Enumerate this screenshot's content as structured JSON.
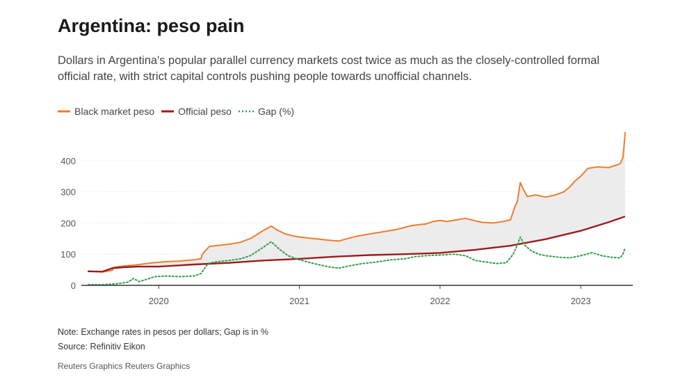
{
  "header": {
    "title": "Argentina: peso pain",
    "subtitle": "Dollars in Argentina's popular parallel currency markets cost twice as much as the closely-controlled formal official rate, with strict capital controls pushing people towards unofficial channels."
  },
  "footer": {
    "note": "Note: Exchange rates in pesos per dollars; Gap is in %",
    "source": "Source: Refinitiv Eikon",
    "credit": "Reuters Graphics Reuters Graphics"
  },
  "colors": {
    "black_market": "#f07c2e",
    "official": "#9b1c1c",
    "gap": "#2e9e4a",
    "fill": "#ececec",
    "axis": "#333333",
    "grid": "#dddddd"
  },
  "chart_data": {
    "type": "line",
    "title": "Argentina: peso pain",
    "xlabel": "",
    "ylabel": "",
    "xlim": [
      2019.45,
      2023.37
    ],
    "ylim": [
      0,
      500
    ],
    "yticks": [
      0,
      100,
      200,
      300,
      400
    ],
    "xticks": [
      2020,
      2021,
      2022,
      2023
    ],
    "legend_position": "top-left",
    "grid": true,
    "series": [
      {
        "name": "Black market peso",
        "style": "solid",
        "points": [
          [
            2019.5,
            45
          ],
          [
            2019.6,
            43
          ],
          [
            2019.67,
            48
          ],
          [
            2019.68,
            58
          ],
          [
            2019.75,
            62
          ],
          [
            2019.85,
            66
          ],
          [
            2019.95,
            72
          ],
          [
            2020.05,
            76
          ],
          [
            2020.15,
            78
          ],
          [
            2020.25,
            82
          ],
          [
            2020.3,
            85
          ],
          [
            2020.31,
            100
          ],
          [
            2020.36,
            125
          ],
          [
            2020.42,
            128
          ],
          [
            2020.5,
            132
          ],
          [
            2020.58,
            138
          ],
          [
            2020.66,
            152
          ],
          [
            2020.74,
            175
          ],
          [
            2020.8,
            190
          ],
          [
            2020.84,
            178
          ],
          [
            2020.9,
            165
          ],
          [
            2020.96,
            158
          ],
          [
            2021.0,
            155
          ],
          [
            2021.1,
            150
          ],
          [
            2021.2,
            145
          ],
          [
            2021.28,
            142
          ],
          [
            2021.32,
            147
          ],
          [
            2021.4,
            157
          ],
          [
            2021.5,
            165
          ],
          [
            2021.6,
            172
          ],
          [
            2021.7,
            180
          ],
          [
            2021.8,
            192
          ],
          [
            2021.9,
            197
          ],
          [
            2021.95,
            205
          ],
          [
            2022.0,
            208
          ],
          [
            2022.05,
            205
          ],
          [
            2022.12,
            210
          ],
          [
            2022.18,
            215
          ],
          [
            2022.25,
            207
          ],
          [
            2022.3,
            202
          ],
          [
            2022.38,
            200
          ],
          [
            2022.45,
            205
          ],
          [
            2022.5,
            210
          ],
          [
            2022.53,
            250
          ],
          [
            2022.55,
            270
          ],
          [
            2022.57,
            330
          ],
          [
            2022.59,
            310
          ],
          [
            2022.62,
            285
          ],
          [
            2022.68,
            290
          ],
          [
            2022.75,
            283
          ],
          [
            2022.82,
            290
          ],
          [
            2022.88,
            300
          ],
          [
            2022.92,
            315
          ],
          [
            2022.96,
            335
          ],
          [
            2023.0,
            350
          ],
          [
            2023.05,
            375
          ],
          [
            2023.12,
            380
          ],
          [
            2023.2,
            378
          ],
          [
            2023.25,
            385
          ],
          [
            2023.28,
            390
          ],
          [
            2023.3,
            410
          ],
          [
            2023.31,
            460
          ],
          [
            2023.315,
            490
          ]
        ]
      },
      {
        "name": "Official peso",
        "style": "solid",
        "points": [
          [
            2019.5,
            45
          ],
          [
            2019.6,
            44
          ],
          [
            2019.67,
            55
          ],
          [
            2019.75,
            58
          ],
          [
            2019.85,
            60
          ],
          [
            2020.0,
            60
          ],
          [
            2020.25,
            67
          ],
          [
            2020.5,
            72
          ],
          [
            2020.75,
            80
          ],
          [
            2021.0,
            85
          ],
          [
            2021.25,
            92
          ],
          [
            2021.5,
            97
          ],
          [
            2021.75,
            100
          ],
          [
            2022.0,
            104
          ],
          [
            2022.25,
            114
          ],
          [
            2022.5,
            127
          ],
          [
            2022.75,
            148
          ],
          [
            2023.0,
            175
          ],
          [
            2023.2,
            203
          ],
          [
            2023.31,
            220
          ]
        ]
      },
      {
        "name": "Gap (%)",
        "style": "dotted",
        "points": [
          [
            2019.5,
            2
          ],
          [
            2019.6,
            2
          ],
          [
            2019.7,
            5
          ],
          [
            2019.78,
            10
          ],
          [
            2019.82,
            22
          ],
          [
            2019.86,
            12
          ],
          [
            2019.92,
            20
          ],
          [
            2019.97,
            28
          ],
          [
            2020.05,
            30
          ],
          [
            2020.15,
            28
          ],
          [
            2020.25,
            30
          ],
          [
            2020.3,
            38
          ],
          [
            2020.35,
            70
          ],
          [
            2020.4,
            75
          ],
          [
            2020.5,
            80
          ],
          [
            2020.58,
            85
          ],
          [
            2020.65,
            95
          ],
          [
            2020.72,
            115
          ],
          [
            2020.8,
            140
          ],
          [
            2020.86,
            115
          ],
          [
            2020.92,
            95
          ],
          [
            2021.0,
            82
          ],
          [
            2021.1,
            70
          ],
          [
            2021.2,
            60
          ],
          [
            2021.28,
            55
          ],
          [
            2021.35,
            62
          ],
          [
            2021.45,
            70
          ],
          [
            2021.55,
            75
          ],
          [
            2021.65,
            82
          ],
          [
            2021.75,
            85
          ],
          [
            2021.82,
            92
          ],
          [
            2021.9,
            95
          ],
          [
            2022.0,
            97
          ],
          [
            2022.1,
            100
          ],
          [
            2022.18,
            95
          ],
          [
            2022.25,
            80
          ],
          [
            2022.32,
            75
          ],
          [
            2022.4,
            70
          ],
          [
            2022.47,
            72
          ],
          [
            2022.52,
            100
          ],
          [
            2022.55,
            130
          ],
          [
            2022.57,
            155
          ],
          [
            2022.6,
            130
          ],
          [
            2022.65,
            110
          ],
          [
            2022.7,
            100
          ],
          [
            2022.75,
            95
          ],
          [
            2022.85,
            90
          ],
          [
            2022.92,
            88
          ],
          [
            2023.0,
            95
          ],
          [
            2023.08,
            105
          ],
          [
            2023.15,
            95
          ],
          [
            2023.22,
            90
          ],
          [
            2023.28,
            88
          ],
          [
            2023.3,
            100
          ],
          [
            2023.315,
            120
          ]
        ]
      }
    ]
  }
}
